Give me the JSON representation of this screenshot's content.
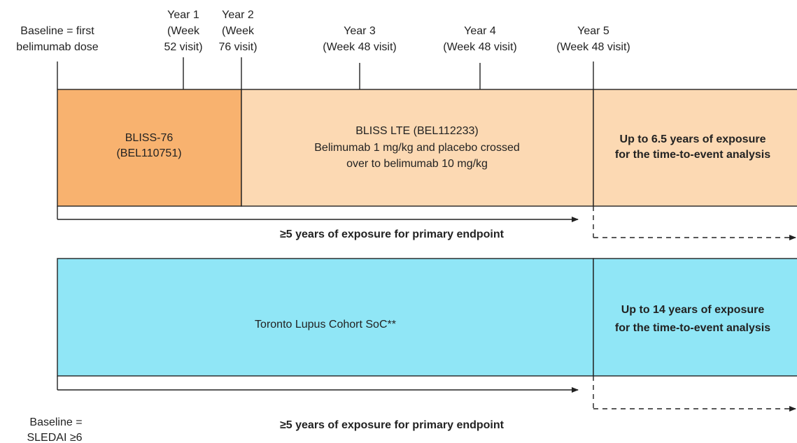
{
  "timeline_labels": [
    {
      "lines": [
        "Baseline = first",
        "belimumab dose"
      ]
    },
    {
      "lines": [
        "Year 1",
        "(Week",
        "52 visit)"
      ]
    },
    {
      "lines": [
        "Year 2",
        "(Week",
        "76 visit)"
      ]
    },
    {
      "lines": [
        "Year 3",
        "(Week 48 visit)"
      ]
    },
    {
      "lines": [
        "Year 4",
        "(Week 48 visit)"
      ]
    },
    {
      "lines": [
        "Year 5",
        "(Week 48 visit)"
      ]
    }
  ],
  "upper_row": {
    "study_block": {
      "lines": [
        "BLISS-76",
        "(BEL110751)"
      ]
    },
    "extension_block": {
      "lines": [
        "BLISS LTE (BEL112233)",
        "Belimumab 1 mg/kg and placebo crossed",
        "over to belimumab 10 mg/kg"
      ]
    },
    "extended_exposure": {
      "lines": [
        "Up to 6.5 years of exposure",
        "for the time-to-event analysis"
      ]
    },
    "primary_endpoint": "≥5 years of exposure for primary endpoint"
  },
  "lower_row": {
    "cohort_block": {
      "lines": [
        "Toronto Lupus Cohort SoC**"
      ]
    },
    "extended_exposure": {
      "lines": [
        "Up to 14 years of exposure",
        "for the time-to-event analysis"
      ]
    },
    "primary_endpoint": "≥5 years of exposure for primary endpoint",
    "baseline": {
      "lines": [
        "Baseline =",
        "SLEDAI ≥6"
      ]
    }
  }
}
